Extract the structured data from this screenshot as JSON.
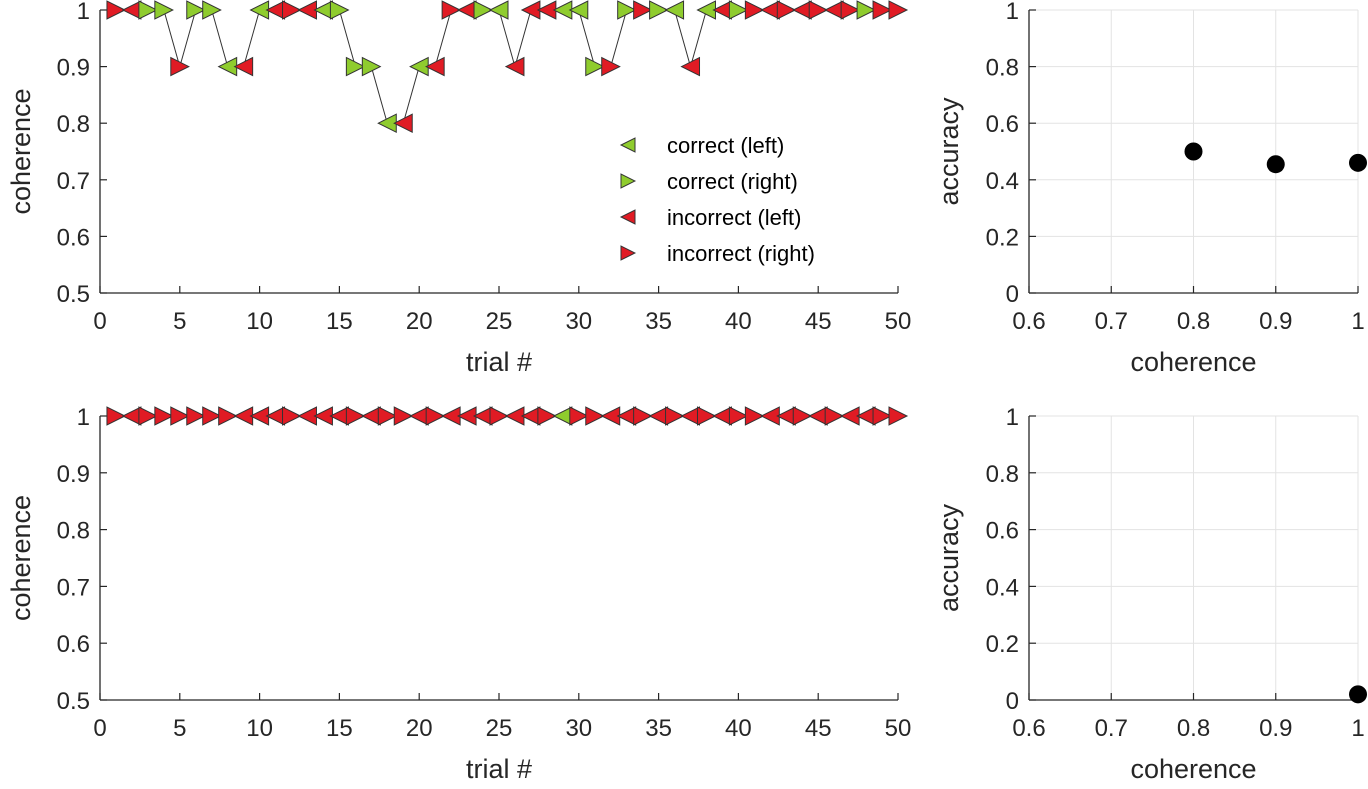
{
  "colors": {
    "correct": "#8fcc2e",
    "incorrect": "#e01b24",
    "line": "#000000",
    "dot": "#000000"
  },
  "chart_data": [
    {
      "id": "top-left",
      "type": "scatter",
      "xlabel": "trial #",
      "ylabel": "coherence",
      "xlim": [
        0,
        50
      ],
      "ylim": [
        0.5,
        1
      ],
      "xticks": [
        "0",
        "5",
        "10",
        "15",
        "20",
        "25",
        "30",
        "35",
        "40",
        "45",
        "50"
      ],
      "yticks": [
        "0.5",
        "0.6",
        "0.7",
        "0.8",
        "0.9",
        "1"
      ],
      "grid": false,
      "legend": {
        "placement": "right-center",
        "entries": [
          "correct (left)",
          "correct (right)",
          "incorrect (left)",
          "incorrect (right)"
        ]
      },
      "trials": [
        {
          "t": 1,
          "c": 1,
          "d": "R",
          "ok": false
        },
        {
          "t": 2,
          "c": 1,
          "d": "L",
          "ok": false
        },
        {
          "t": 3,
          "c": 1,
          "d": "R",
          "ok": true
        },
        {
          "t": 4,
          "c": 1,
          "d": "R",
          "ok": true
        },
        {
          "t": 5,
          "c": 0.9,
          "d": "R",
          "ok": false
        },
        {
          "t": 6,
          "c": 1,
          "d": "R",
          "ok": true
        },
        {
          "t": 7,
          "c": 1,
          "d": "R",
          "ok": true
        },
        {
          "t": 8,
          "c": 0.9,
          "d": "L",
          "ok": true
        },
        {
          "t": 9,
          "c": 0.9,
          "d": "L",
          "ok": false
        },
        {
          "t": 10,
          "c": 1,
          "d": "L",
          "ok": true
        },
        {
          "t": 11,
          "c": 1,
          "d": "L",
          "ok": false
        },
        {
          "t": 12,
          "c": 1,
          "d": "R",
          "ok": false
        },
        {
          "t": 13,
          "c": 1,
          "d": "L",
          "ok": false
        },
        {
          "t": 14,
          "c": 1,
          "d": "L",
          "ok": true
        },
        {
          "t": 15,
          "c": 1,
          "d": "R",
          "ok": true
        },
        {
          "t": 16,
          "c": 0.9,
          "d": "R",
          "ok": true
        },
        {
          "t": 17,
          "c": 0.9,
          "d": "R",
          "ok": true
        },
        {
          "t": 18,
          "c": 0.8,
          "d": "L",
          "ok": true
        },
        {
          "t": 19,
          "c": 0.8,
          "d": "L",
          "ok": false
        },
        {
          "t": 20,
          "c": 0.9,
          "d": "L",
          "ok": true
        },
        {
          "t": 21,
          "c": 0.9,
          "d": "L",
          "ok": false
        },
        {
          "t": 22,
          "c": 1,
          "d": "R",
          "ok": false
        },
        {
          "t": 23,
          "c": 1,
          "d": "L",
          "ok": false
        },
        {
          "t": 24,
          "c": 1,
          "d": "R",
          "ok": true
        },
        {
          "t": 25,
          "c": 1,
          "d": "L",
          "ok": true
        },
        {
          "t": 26,
          "c": 0.9,
          "d": "L",
          "ok": false
        },
        {
          "t": 27,
          "c": 1,
          "d": "L",
          "ok": false
        },
        {
          "t": 28,
          "c": 1,
          "d": "L",
          "ok": false
        },
        {
          "t": 29,
          "c": 1,
          "d": "L",
          "ok": true
        },
        {
          "t": 30,
          "c": 1,
          "d": "L",
          "ok": true
        },
        {
          "t": 31,
          "c": 0.9,
          "d": "R",
          "ok": true
        },
        {
          "t": 32,
          "c": 0.9,
          "d": "R",
          "ok": false
        },
        {
          "t": 33,
          "c": 1,
          "d": "R",
          "ok": true
        },
        {
          "t": 34,
          "c": 1,
          "d": "R",
          "ok": false
        },
        {
          "t": 35,
          "c": 1,
          "d": "R",
          "ok": true
        },
        {
          "t": 36,
          "c": 1,
          "d": "L",
          "ok": true
        },
        {
          "t": 37,
          "c": 0.9,
          "d": "L",
          "ok": false
        },
        {
          "t": 38,
          "c": 1,
          "d": "L",
          "ok": true
        },
        {
          "t": 39,
          "c": 1,
          "d": "L",
          "ok": false
        },
        {
          "t": 40,
          "c": 1,
          "d": "R",
          "ok": true
        },
        {
          "t": 41,
          "c": 1,
          "d": "R",
          "ok": false
        },
        {
          "t": 42,
          "c": 1,
          "d": "L",
          "ok": false
        },
        {
          "t": 43,
          "c": 1,
          "d": "R",
          "ok": false
        },
        {
          "t": 44,
          "c": 1,
          "d": "L",
          "ok": false
        },
        {
          "t": 45,
          "c": 1,
          "d": "R",
          "ok": false
        },
        {
          "t": 46,
          "c": 1,
          "d": "L",
          "ok": false
        },
        {
          "t": 47,
          "c": 1,
          "d": "R",
          "ok": false
        },
        {
          "t": 48,
          "c": 1,
          "d": "R",
          "ok": true
        },
        {
          "t": 49,
          "c": 1,
          "d": "R",
          "ok": false
        },
        {
          "t": 50,
          "c": 1,
          "d": "R",
          "ok": false
        }
      ]
    },
    {
      "id": "top-right",
      "type": "scatter",
      "xlabel": "coherence",
      "ylabel": "accuracy",
      "xlim": [
        0.6,
        1
      ],
      "ylim": [
        0,
        1
      ],
      "xticks": [
        "0.6",
        "0.7",
        "0.8",
        "0.9",
        "1"
      ],
      "yticks": [
        "0",
        "0.2",
        "0.4",
        "0.6",
        "0.8",
        "1"
      ],
      "grid": true,
      "x": [
        0.8,
        0.9,
        1.0
      ],
      "y": [
        0.5,
        0.455,
        0.46
      ]
    },
    {
      "id": "bottom-left",
      "type": "scatter",
      "xlabel": "trial #",
      "ylabel": "coherence",
      "xlim": [
        0,
        50
      ],
      "ylim": [
        0.5,
        1
      ],
      "xticks": [
        "0",
        "5",
        "10",
        "15",
        "20",
        "25",
        "30",
        "35",
        "40",
        "45",
        "50"
      ],
      "yticks": [
        "0.5",
        "0.6",
        "0.7",
        "0.8",
        "0.9",
        "1"
      ],
      "grid": false,
      "trials": [
        {
          "t": 1,
          "c": 1,
          "d": "R",
          "ok": false
        },
        {
          "t": 2,
          "c": 1,
          "d": "L",
          "ok": false
        },
        {
          "t": 3,
          "c": 1,
          "d": "R",
          "ok": false
        },
        {
          "t": 4,
          "c": 1,
          "d": "R",
          "ok": false
        },
        {
          "t": 5,
          "c": 1,
          "d": "R",
          "ok": false
        },
        {
          "t": 6,
          "c": 1,
          "d": "R",
          "ok": false
        },
        {
          "t": 7,
          "c": 1,
          "d": "R",
          "ok": false
        },
        {
          "t": 8,
          "c": 1,
          "d": "R",
          "ok": false
        },
        {
          "t": 9,
          "c": 1,
          "d": "L",
          "ok": false
        },
        {
          "t": 10,
          "c": 1,
          "d": "L",
          "ok": false
        },
        {
          "t": 11,
          "c": 1,
          "d": "L",
          "ok": false
        },
        {
          "t": 12,
          "c": 1,
          "d": "R",
          "ok": false
        },
        {
          "t": 13,
          "c": 1,
          "d": "L",
          "ok": false
        },
        {
          "t": 14,
          "c": 1,
          "d": "L",
          "ok": false
        },
        {
          "t": 15,
          "c": 1,
          "d": "L",
          "ok": false
        },
        {
          "t": 16,
          "c": 1,
          "d": "R",
          "ok": false
        },
        {
          "t": 17,
          "c": 1,
          "d": "L",
          "ok": false
        },
        {
          "t": 18,
          "c": 1,
          "d": "R",
          "ok": false
        },
        {
          "t": 19,
          "c": 1,
          "d": "R",
          "ok": false
        },
        {
          "t": 20,
          "c": 1,
          "d": "L",
          "ok": false
        },
        {
          "t": 21,
          "c": 1,
          "d": "R",
          "ok": false
        },
        {
          "t": 22,
          "c": 1,
          "d": "L",
          "ok": false
        },
        {
          "t": 23,
          "c": 1,
          "d": "L",
          "ok": false
        },
        {
          "t": 24,
          "c": 1,
          "d": "L",
          "ok": false
        },
        {
          "t": 25,
          "c": 1,
          "d": "R",
          "ok": false
        },
        {
          "t": 26,
          "c": 1,
          "d": "L",
          "ok": false
        },
        {
          "t": 27,
          "c": 1,
          "d": "L",
          "ok": false
        },
        {
          "t": 28,
          "c": 1,
          "d": "R",
          "ok": false
        },
        {
          "t": 29,
          "c": 1,
          "d": "L",
          "ok": true
        },
        {
          "t": 30,
          "c": 1,
          "d": "R",
          "ok": false
        },
        {
          "t": 31,
          "c": 1,
          "d": "R",
          "ok": false
        },
        {
          "t": 32,
          "c": 1,
          "d": "L",
          "ok": false
        },
        {
          "t": 33,
          "c": 1,
          "d": "L",
          "ok": false
        },
        {
          "t": 34,
          "c": 1,
          "d": "R",
          "ok": false
        },
        {
          "t": 35,
          "c": 1,
          "d": "L",
          "ok": false
        },
        {
          "t": 36,
          "c": 1,
          "d": "R",
          "ok": false
        },
        {
          "t": 37,
          "c": 1,
          "d": "L",
          "ok": false
        },
        {
          "t": 38,
          "c": 1,
          "d": "R",
          "ok": false
        },
        {
          "t": 39,
          "c": 1,
          "d": "L",
          "ok": false
        },
        {
          "t": 40,
          "c": 1,
          "d": "R",
          "ok": false
        },
        {
          "t": 41,
          "c": 1,
          "d": "R",
          "ok": false
        },
        {
          "t": 42,
          "c": 1,
          "d": "L",
          "ok": false
        },
        {
          "t": 43,
          "c": 1,
          "d": "L",
          "ok": false
        },
        {
          "t": 44,
          "c": 1,
          "d": "R",
          "ok": false
        },
        {
          "t": 45,
          "c": 1,
          "d": "L",
          "ok": false
        },
        {
          "t": 46,
          "c": 1,
          "d": "R",
          "ok": false
        },
        {
          "t": 47,
          "c": 1,
          "d": "L",
          "ok": false
        },
        {
          "t": 48,
          "c": 1,
          "d": "L",
          "ok": false
        },
        {
          "t": 49,
          "c": 1,
          "d": "R",
          "ok": false
        },
        {
          "t": 50,
          "c": 1,
          "d": "R",
          "ok": false
        }
      ]
    },
    {
      "id": "bottom-right",
      "type": "scatter",
      "xlabel": "coherence",
      "ylabel": "accuracy",
      "xlim": [
        0.6,
        1
      ],
      "ylim": [
        0,
        1
      ],
      "xticks": [
        "0.6",
        "0.7",
        "0.8",
        "0.9",
        "1"
      ],
      "yticks": [
        "0",
        "0.2",
        "0.4",
        "0.6",
        "0.8",
        "1"
      ],
      "grid": true,
      "x": [
        1.0
      ],
      "y": [
        0.02
      ]
    }
  ]
}
